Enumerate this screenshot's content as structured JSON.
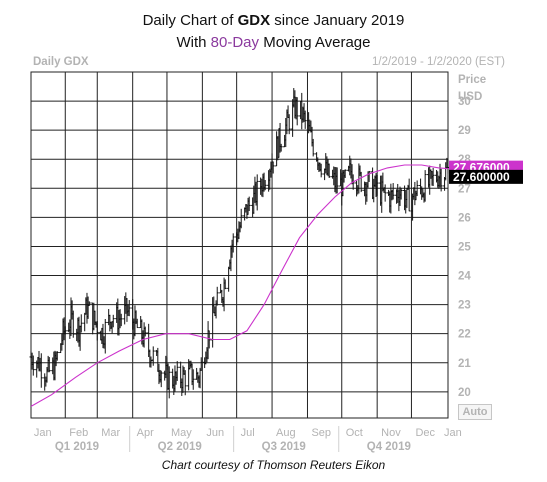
{
  "title": {
    "line1_prefix": "Daily Chart of ",
    "line1_ticker": "GDX",
    "line1_suffix": " since January 2019",
    "line2_prefix": "With ",
    "line2_ma": "80-Day",
    "line2_suffix": " Moving Average"
  },
  "header": {
    "left": "Daily GDX",
    "right": "1/2/2019 - 1/2/2020 (EST)"
  },
  "axis": {
    "unit_line1": "Price",
    "unit_line2": "USD",
    "auto_button": "Auto"
  },
  "credit": "Chart courtesy of Thomson Reuters Eikon",
  "colors": {
    "grid": "#222222",
    "bars": "#111111",
    "moving_average": "#cc33cc",
    "ma_tag": "#cc33cc",
    "price_tag": "#000000"
  },
  "chart_data": {
    "type": "line",
    "y_ticks": [
      20,
      21,
      22,
      23,
      24,
      25,
      26,
      27,
      28,
      29,
      30
    ],
    "y_range": [
      19.1,
      31.0
    ],
    "x_ticks": [
      "Jan",
      "Feb",
      "Mar",
      "Apr",
      "May",
      "Jun",
      "Jul",
      "Aug",
      "Sep",
      "Oct",
      "Nov",
      "Dec",
      "Jan"
    ],
    "quarters": [
      "Q1 2019",
      "Q2 2019",
      "Q3 2019",
      "Q4 2019"
    ],
    "x_range": [
      "2019-01-02",
      "2020-01-02"
    ],
    "tags": {
      "moving_average": "27.676000",
      "last_price": "27.600000"
    },
    "series": [
      {
        "style": "ohlc-bars",
        "x": [
          "2019-01-02",
          "2019-01-09",
          "2019-01-16",
          "2019-01-23",
          "2019-01-30",
          "2019-02-06",
          "2019-02-13",
          "2019-02-20",
          "2019-02-27",
          "2019-03-06",
          "2019-03-13",
          "2019-03-20",
          "2019-03-27",
          "2019-04-03",
          "2019-04-10",
          "2019-04-17",
          "2019-04-24",
          "2019-05-01",
          "2019-05-08",
          "2019-05-15",
          "2019-05-22",
          "2019-05-29",
          "2019-06-05",
          "2019-06-12",
          "2019-06-19",
          "2019-06-26",
          "2019-07-03",
          "2019-07-10",
          "2019-07-17",
          "2019-07-24",
          "2019-07-31",
          "2019-08-07",
          "2019-08-14",
          "2019-08-21",
          "2019-08-28",
          "2019-09-04",
          "2019-09-11",
          "2019-09-18",
          "2019-09-25",
          "2019-10-02",
          "2019-10-09",
          "2019-10-16",
          "2019-10-23",
          "2019-10-30",
          "2019-11-06",
          "2019-11-13",
          "2019-11-20",
          "2019-11-27",
          "2019-12-04",
          "2019-12-11",
          "2019-12-18",
          "2019-12-25",
          "2020-01-02"
        ],
        "values": [
          21.2,
          21.0,
          20.6,
          20.9,
          22.0,
          22.5,
          22.2,
          22.9,
          22.4,
          22.0,
          22.6,
          22.5,
          22.8,
          22.3,
          21.9,
          21.3,
          20.9,
          20.5,
          20.4,
          20.5,
          20.6,
          20.5,
          21.8,
          22.8,
          23.5,
          25.0,
          25.6,
          26.3,
          26.7,
          27.3,
          27.9,
          28.6,
          29.2,
          29.8,
          29.5,
          28.7,
          28.0,
          27.5,
          27.2,
          27.1,
          27.6,
          27.3,
          27.2,
          27.0,
          26.8,
          26.7,
          26.9,
          26.6,
          26.8,
          27.0,
          27.2,
          27.5,
          27.6
        ]
      },
      {
        "name": "80-Day Moving Average",
        "style": "line",
        "x": [
          "2019-01-02",
          "2019-01-20",
          "2019-02-10",
          "2019-03-01",
          "2019-03-20",
          "2019-04-10",
          "2019-04-30",
          "2019-05-20",
          "2019-06-10",
          "2019-06-25",
          "2019-07-10",
          "2019-07-25",
          "2019-08-10",
          "2019-08-25",
          "2019-09-10",
          "2019-09-25",
          "2019-10-10",
          "2019-10-25",
          "2019-11-10",
          "2019-11-25",
          "2019-12-10",
          "2019-12-25",
          "2020-01-02"
        ],
        "values": [
          19.5,
          19.9,
          20.5,
          21.0,
          21.4,
          21.8,
          22.0,
          22.0,
          21.8,
          21.8,
          22.1,
          23.0,
          24.2,
          25.3,
          26.1,
          26.7,
          27.2,
          27.5,
          27.7,
          27.8,
          27.8,
          27.7,
          27.676
        ]
      }
    ]
  }
}
